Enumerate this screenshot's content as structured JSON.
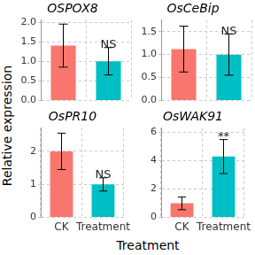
{
  "y_label": "Relative expression",
  "x_label": "Treatment",
  "chart_data": [
    {
      "type": "bar",
      "title": "OSPOX8",
      "categories": [
        "CK",
        "Treatment"
      ],
      "values": [
        1.4,
        1.0
      ],
      "errors": [
        0.55,
        0.35
      ],
      "colors": [
        "#F8766D",
        "#00BFC4"
      ],
      "ylim": [
        0,
        2.05
      ],
      "yticks": [
        {
          "value": 0,
          "label": "0.0"
        },
        {
          "value": 0.5,
          "label": "0.5"
        },
        {
          "value": 1,
          "label": "1.0"
        },
        {
          "value": 1.5,
          "label": "1.5"
        },
        {
          "value": 2,
          "label": "2.0"
        }
      ],
      "grid": true,
      "tick_labels": "y",
      "annotations": [
        {
          "category": "Treatment",
          "text": "NS"
        }
      ]
    },
    {
      "type": "bar",
      "title": "OsCeBip",
      "categories": [
        "CK",
        "Treatment"
      ],
      "values": [
        1.12,
        1.0
      ],
      "errors": [
        0.5,
        0.45
      ],
      "colors": [
        "#F8766D",
        "#00BFC4"
      ],
      "ylim": [
        0,
        1.75
      ],
      "yticks": [
        {
          "value": 0,
          "label": "0.0"
        },
        {
          "value": 0.5,
          "label": "0.5"
        },
        {
          "value": 1,
          "label": "1.0"
        },
        {
          "value": 1.5,
          "label": "1.5"
        }
      ],
      "grid": true,
      "tick_labels": "y",
      "annotations": [
        {
          "category": "Treatment",
          "text": "NS"
        }
      ]
    },
    {
      "type": "bar",
      "title": "OsPR10",
      "categories": [
        "CK",
        "Treatment"
      ],
      "values": [
        2.0,
        1.0
      ],
      "errors": [
        0.55,
        0.2
      ],
      "colors": [
        "#F8766D",
        "#00BFC4"
      ],
      "ylim": [
        0,
        2.7
      ],
      "yticks": [
        0,
        1,
        2
      ],
      "grid": true,
      "annotations": [
        {
          "category": "Treatment",
          "text": "NS"
        }
      ]
    },
    {
      "type": "bar",
      "title": "OsWAK91",
      "categories": [
        "CK",
        "Treatment"
      ],
      "values": [
        1.0,
        4.3
      ],
      "errors": [
        0.45,
        1.2
      ],
      "colors": [
        "#F8766D",
        "#00BFC4"
      ],
      "ylim": [
        0,
        6.3
      ],
      "yticks": [
        0,
        2,
        4,
        6
      ],
      "grid": true,
      "annotations": [
        {
          "category": "Treatment",
          "text": "**"
        }
      ]
    }
  ]
}
